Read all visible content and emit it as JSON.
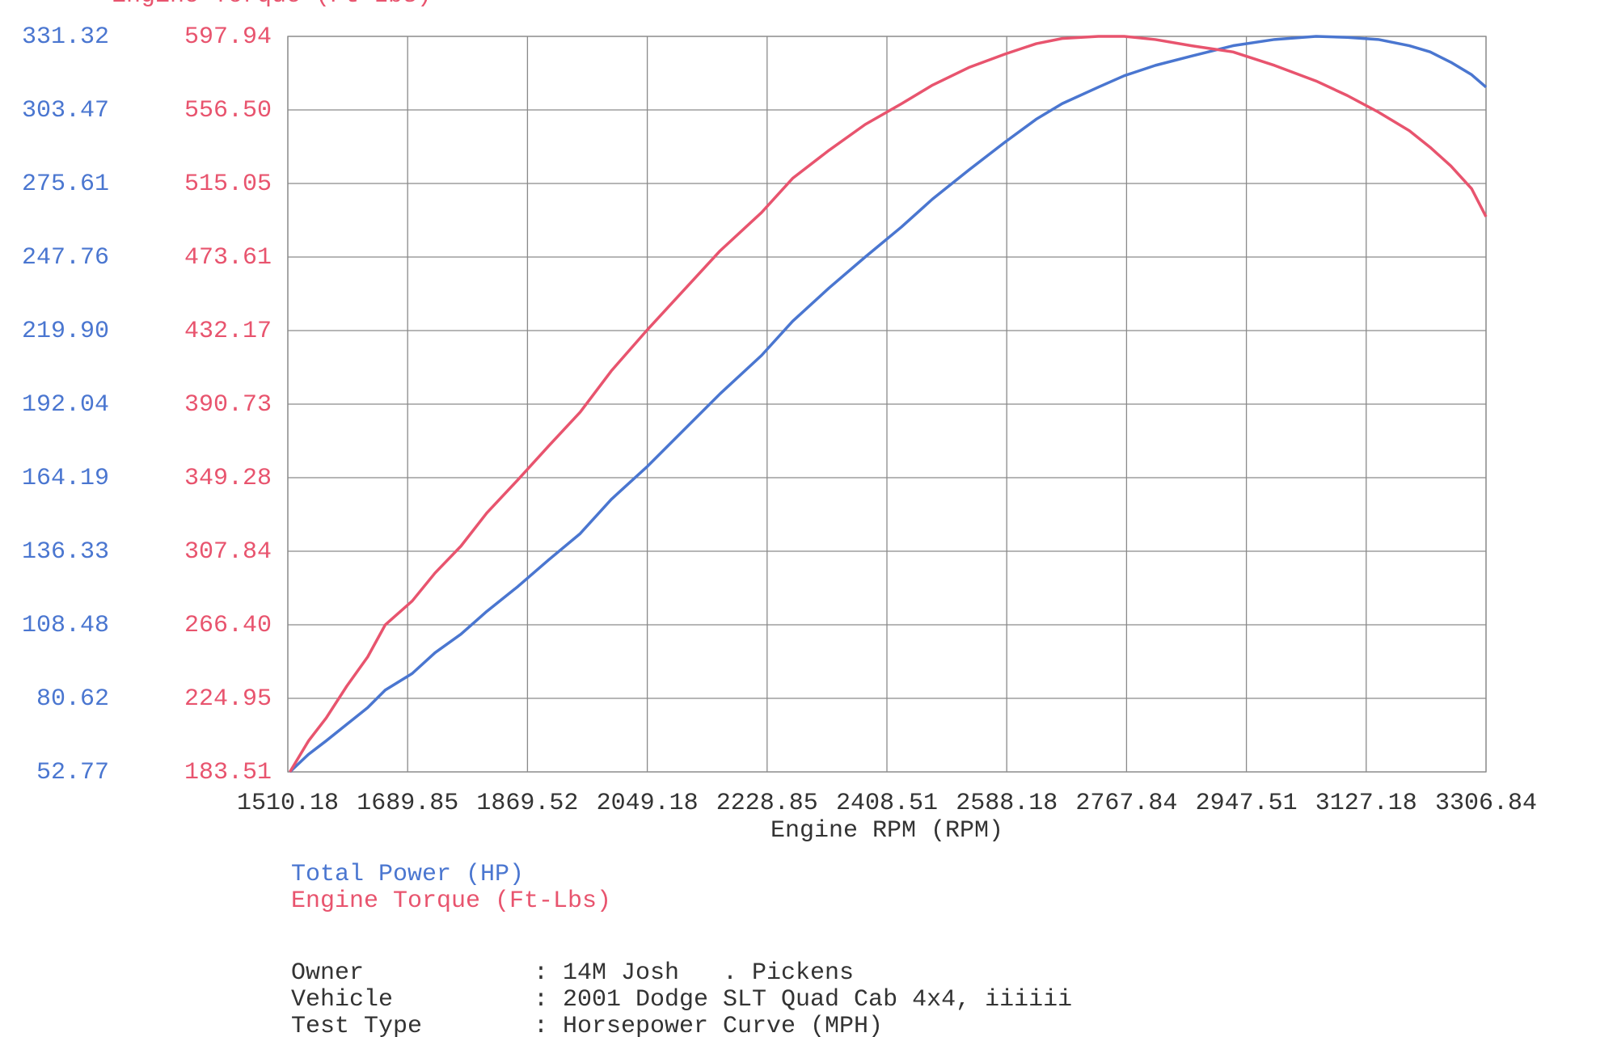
{
  "chart_data": {
    "type": "line",
    "xlabel": "Engine RPM (RPM)",
    "y2label": "Engine Torque (Ft-Lbs)",
    "x": [
      1513.3,
      1541.3,
      1567.7,
      1598.8,
      1629.9,
      1656.3,
      1696.7,
      1730.9,
      1769.8,
      1808.6,
      1855.2,
      1901.8,
      1948.5,
      1995.1,
      2049.5,
      2103.9,
      2158.3,
      2220.5,
      2267.1,
      2321.5,
      2375.9,
      2430.3,
      2476.9,
      2531.3,
      2585.7,
      2632.3,
      2671.2,
      2725.6,
      2764.4,
      2811.1,
      2865.5,
      2927.7,
      2989.8,
      3052.0,
      3098.7,
      3145.3,
      3191.9,
      3223.0,
      3254.1,
      3285.2,
      3306.84
    ],
    "series": [
      {
        "name": "Total Power (HP)",
        "color": "#4a76d0",
        "values": [
          52.77,
          59.44,
          64.54,
          70.82,
          77.09,
          83.76,
          90.04,
          97.89,
          104.95,
          113.58,
          122.99,
          133.19,
          143.0,
          155.95,
          168.5,
          182.24,
          195.97,
          210.49,
          223.43,
          235.98,
          247.75,
          259.13,
          269.72,
          280.71,
          291.3,
          299.93,
          305.83,
          312.1,
          316.42,
          320.34,
          323.87,
          327.79,
          330.15,
          331.32,
          330.93,
          330.15,
          327.79,
          325.44,
          321.51,
          316.8,
          312.1
        ]
      },
      {
        "name": "Engine Torque (Ft-Lbs)",
        "color": "#e8546e",
        "axis": "y2",
        "values": [
          183.51,
          201.02,
          213.86,
          231.95,
          248.3,
          266.39,
          279.81,
          295.57,
          310.74,
          329.43,
          348.1,
          367.36,
          386.18,
          409.39,
          432.73,
          454.91,
          477.09,
          498.69,
          517.95,
          533.71,
          548.3,
          559.97,
          570.48,
          580.4,
          587.98,
          593.82,
          596.74,
          597.94,
          597.94,
          596.15,
          592.65,
          589.15,
          581.56,
          572.8,
          564.63,
          555.3,
          544.79,
          535.45,
          524.95,
          512.11,
          496.35
        ]
      }
    ],
    "xlim": [
      1510.18,
      3306.84
    ],
    "xticks": [
      1510.18,
      1689.85,
      1869.52,
      2049.18,
      2228.85,
      2408.51,
      2588.18,
      2767.84,
      2947.51,
      3127.18,
      3306.84
    ],
    "ylim": [
      52.77,
      331.32
    ],
    "yticks": [
      52.77,
      80.62,
      108.48,
      136.33,
      164.19,
      192.04,
      {
        "value": 219.9,
        "label": "219.90"
      },
      247.76,
      275.61,
      303.47,
      331.32
    ],
    "y2lim": [
      183.51,
      597.94
    ],
    "y2ticks": [
      183.51,
      224.95,
      {
        "value": 266.4,
        "label": "266.40"
      },
      307.84,
      349.28,
      390.73,
      432.17,
      473.61,
      515.05,
      {
        "value": 556.5,
        "label": "556.50"
      },
      597.94
    ],
    "grid": true
  },
  "details": [
    {
      "label": "Owner",
      "value": "14M Josh   . Pickens"
    },
    {
      "label": "Vehicle",
      "value": "2001 Dodge SLT Quad Cab 4x4, iiiiii"
    },
    {
      "label": "Test Type",
      "value": "Horsepower Curve (MPH)"
    }
  ]
}
